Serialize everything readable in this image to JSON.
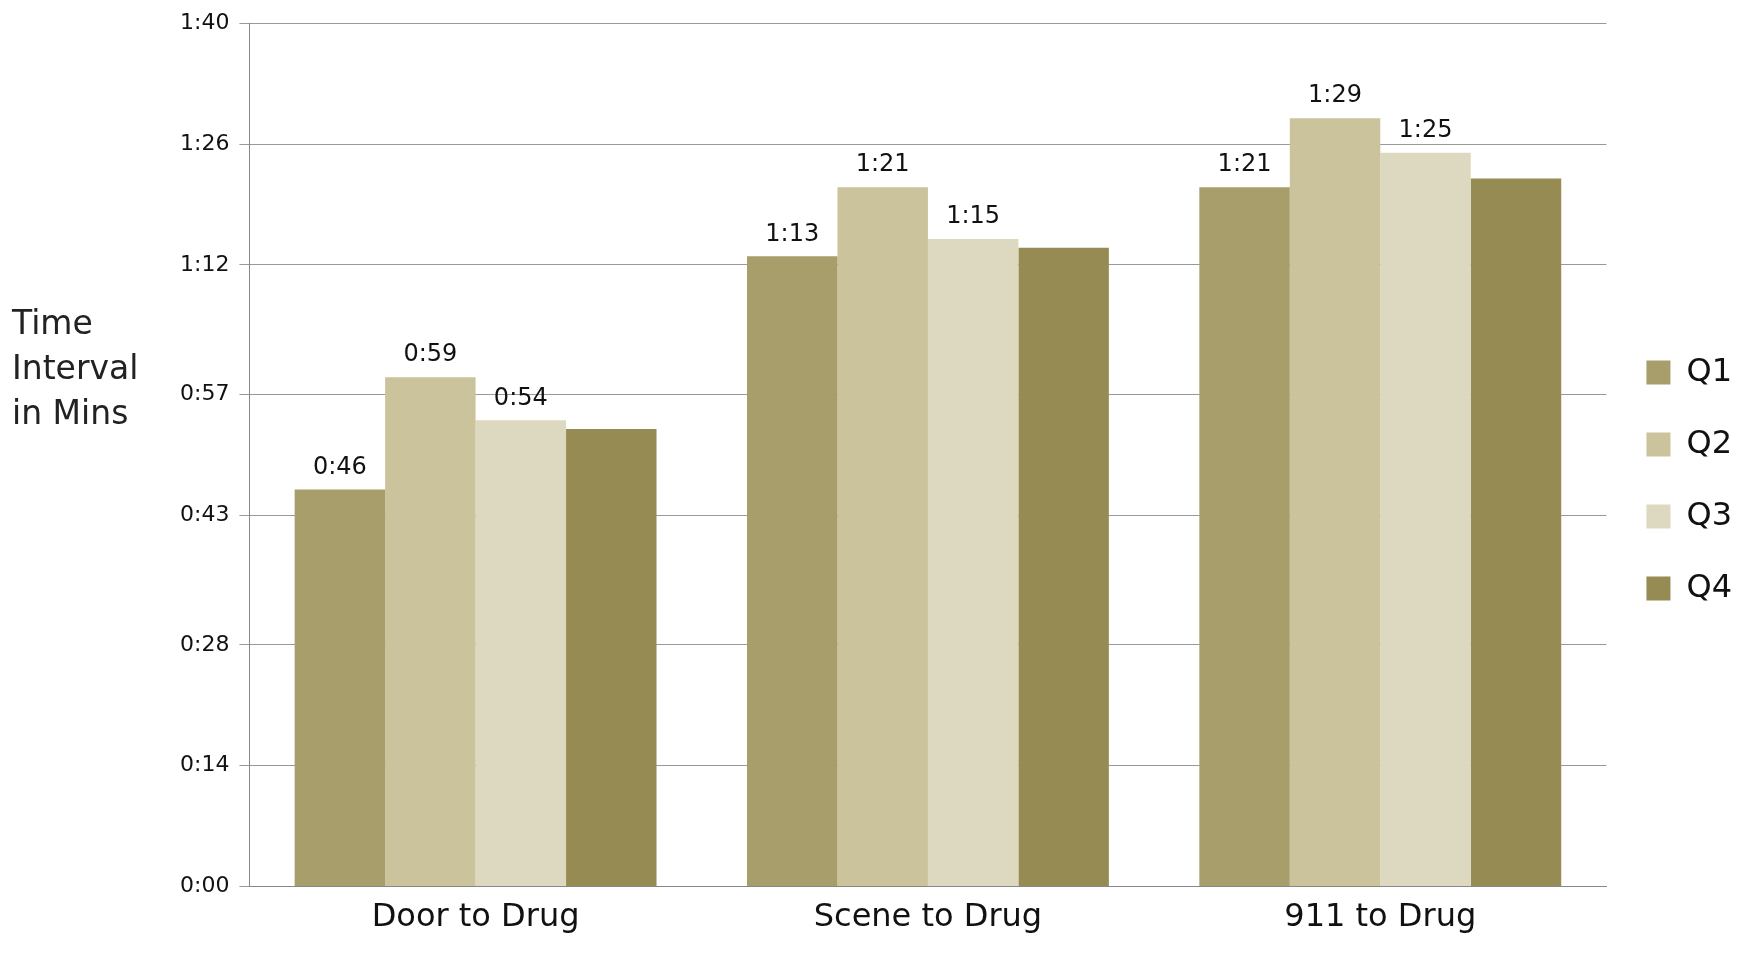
{
  "chart_data": {
    "type": "bar",
    "ylabel": "Time Interval in Mins",
    "categories": [
      "Door to Drug",
      "Scene to Drug",
      "911 to Drug"
    ],
    "series": [
      {
        "name": "Q1",
        "color": "#a89e6c",
        "values": [
          46,
          73,
          81
        ],
        "value_labels": [
          "0:46",
          "1:13",
          "1:21"
        ]
      },
      {
        "name": "Q2",
        "color": "#cbc39c",
        "values": [
          59,
          81,
          89
        ],
        "value_labels": [
          "0:59",
          "1:21",
          "1:29"
        ]
      },
      {
        "name": "Q3",
        "color": "#ddd8c0",
        "values": [
          54,
          75,
          85
        ],
        "value_labels": [
          "0:54",
          "1:15",
          "1:25"
        ]
      },
      {
        "name": "Q4",
        "color": "#958b53",
        "values": [
          53,
          74,
          82
        ]
      }
    ],
    "ylim": [
      0,
      100
    ],
    "yticks": [
      {
        "value": 0,
        "label": "0:00"
      },
      {
        "value": 14,
        "label": "0:14"
      },
      {
        "value": 28,
        "label": "0:28"
      },
      {
        "value": 43,
        "label": "0:43"
      },
      {
        "value": 57,
        "label": "0:57"
      },
      {
        "value": 72,
        "label": "1:12"
      },
      {
        "value": 86,
        "label": "1:26"
      },
      {
        "value": 100,
        "label": "1:40"
      }
    ],
    "grid": "y",
    "legend": "right"
  }
}
